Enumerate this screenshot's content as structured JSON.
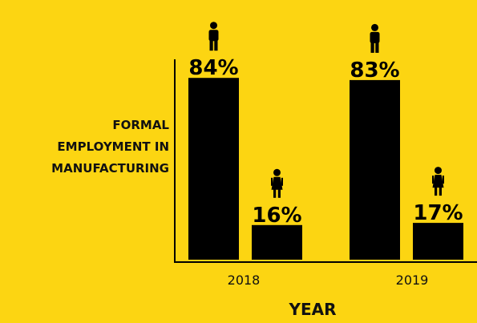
{
  "chart_data": {
    "type": "bar",
    "categories": [
      "2018",
      "2019"
    ],
    "series": [
      {
        "icon": "man-icon",
        "values": [
          84,
          83
        ]
      },
      {
        "icon": "woman-icon",
        "values": [
          16,
          17
        ]
      }
    ],
    "data_labels": [
      [
        "84%",
        "83%"
      ],
      [
        "16%",
        "17%"
      ]
    ],
    "ylabel": "FORMAL EMPLOYMENT IN MANUFACTURING",
    "ylabel_lines": [
      "FORMAL",
      "EMPLOYMENT IN",
      "MANUFACTURING"
    ],
    "xlabel": "YEAR",
    "ylim": [
      0,
      100
    ],
    "grid": false,
    "colors": {
      "background": "#fcd512",
      "bars": "#000000",
      "axis": "#000000"
    }
  }
}
